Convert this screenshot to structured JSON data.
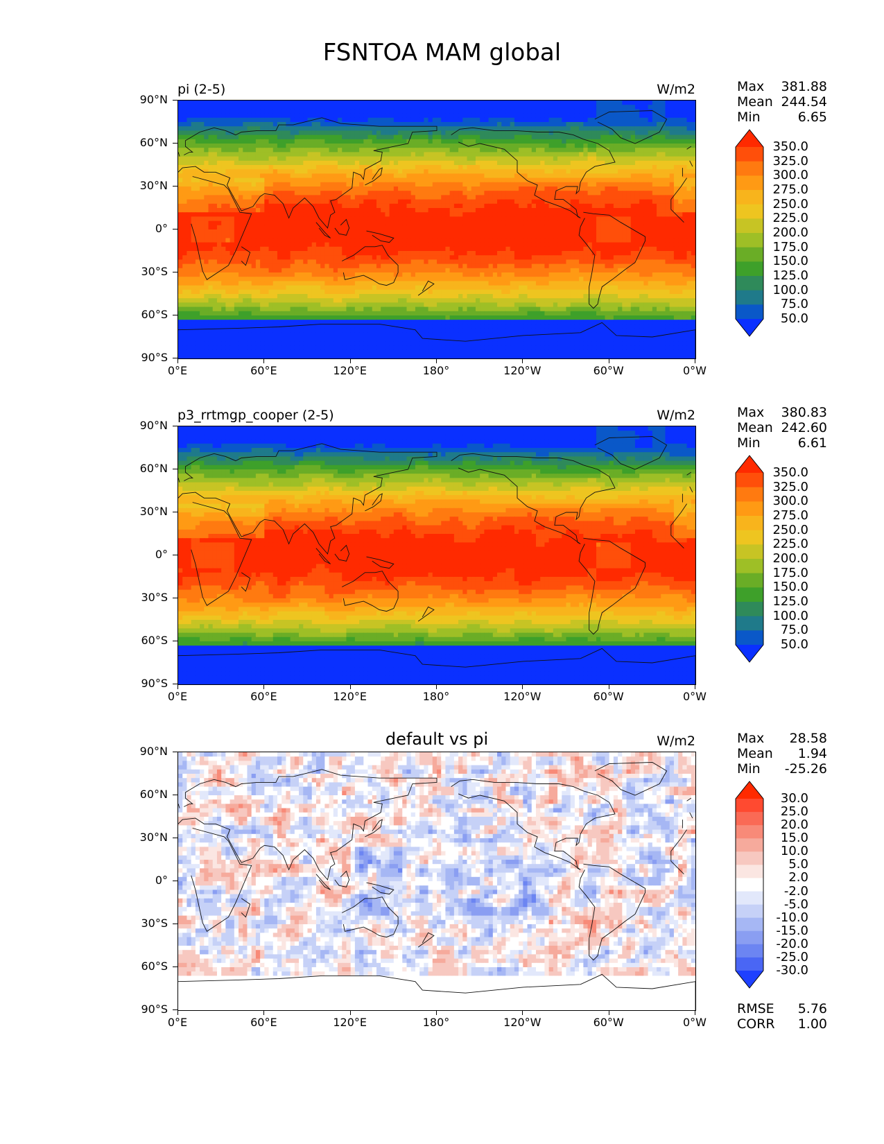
{
  "figure_title": "FSNTOA MAM global",
  "ytick_labels": [
    "90°N",
    "60°N",
    "30°N",
    "0°",
    "30°S",
    "60°S",
    "90°S"
  ],
  "xtick_labels": [
    "0°E",
    "60°E",
    "120°E",
    "180°",
    "120°W",
    "60°W",
    "0°W"
  ],
  "stat_labels": {
    "max": "Max",
    "mean": "Mean",
    "min": "Min",
    "rmse": "RMSE",
    "corr": "CORR"
  },
  "chart_data": [
    {
      "type": "heatmap",
      "title": "pi (2-5)",
      "units": "W/m2",
      "stats": {
        "max": "381.88",
        "mean": "244.54",
        "min": "6.65"
      },
      "colorbar": {
        "levels": [
          "350.0",
          "325.0",
          "300.0",
          "275.0",
          "250.0",
          "225.0",
          "200.0",
          "175.0",
          "150.0",
          "125.0",
          "100.0",
          "75.0",
          "50.0"
        ],
        "colors": [
          "#ff2a00",
          "#ff4f0a",
          "#ff7a10",
          "#ff9a14",
          "#f8b41c",
          "#eec520",
          "#c7c424",
          "#9ebf26",
          "#6aad26",
          "#3ea02a",
          "#2f8a5a",
          "#1f7a8a",
          "#0a58c8",
          "#0a30ff"
        ]
      },
      "ylim": [
        -90,
        90
      ],
      "xlim": [
        0,
        360
      ]
    },
    {
      "type": "heatmap",
      "title": "p3_rrtmgp_cooper (2-5)",
      "units": "W/m2",
      "stats": {
        "max": "380.83",
        "mean": "242.60",
        "min": "6.61"
      },
      "colorbar": {
        "levels": [
          "350.0",
          "325.0",
          "300.0",
          "275.0",
          "250.0",
          "225.0",
          "200.0",
          "175.0",
          "150.0",
          "125.0",
          "100.0",
          "75.0",
          "50.0"
        ],
        "colors": [
          "#ff2a00",
          "#ff4f0a",
          "#ff7a10",
          "#ff9a14",
          "#f8b41c",
          "#eec520",
          "#c7c424",
          "#9ebf26",
          "#6aad26",
          "#3ea02a",
          "#2f8a5a",
          "#1f7a8a",
          "#0a58c8",
          "#0a30ff"
        ]
      },
      "ylim": [
        -90,
        90
      ],
      "xlim": [
        0,
        360
      ]
    },
    {
      "type": "heatmap",
      "title": "default vs pi",
      "units": "W/m2",
      "stats": {
        "max": "28.58",
        "mean": "1.94",
        "min": "-25.26"
      },
      "rmse": "5.76",
      "corr": "1.00",
      "colorbar": {
        "levels": [
          "30.0",
          "25.0",
          "20.0",
          "15.0",
          "10.0",
          "5.0",
          "2.0",
          "-2.0",
          "-5.0",
          "-10.0",
          "-15.0",
          "-20.0",
          "-25.0",
          "-30.0"
        ],
        "colors": [
          "#ff2a00",
          "#ff4a30",
          "#fa6a55",
          "#f88a78",
          "#f6aa9c",
          "#f7c8c0",
          "#fbe6e2",
          "#ffffff",
          "#e2e8fb",
          "#c6d1f7",
          "#a6b7f4",
          "#8a9ef2",
          "#6c85f2",
          "#4a66f4",
          "#1e40ff"
        ]
      },
      "ylim": [
        -90,
        90
      ],
      "xlim": [
        0,
        360
      ]
    }
  ]
}
